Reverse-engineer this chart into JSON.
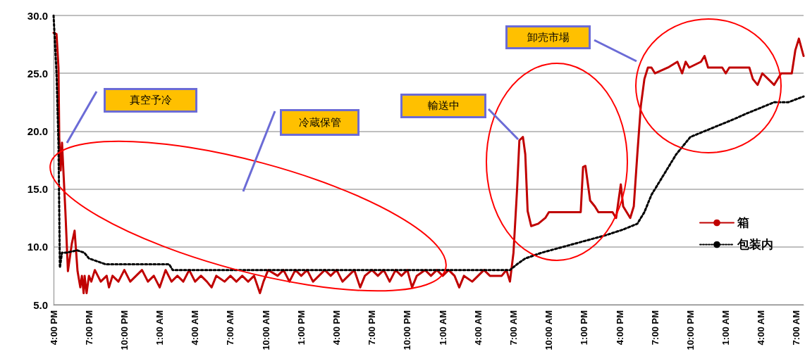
{
  "chart_data": {
    "type": "line",
    "xlim": [
      "--01-01T16:00",
      "--01-04T07:36"
    ],
    "ylim": [
      5,
      30
    ],
    "xticks": [
      {
        "value": "--01-01T16:00",
        "label": "4:00 PM"
      },
      {
        "value": "--01-01T19:00",
        "label": "7:00 PM"
      },
      {
        "value": "--01-01T22:00",
        "label": "10:00 PM"
      },
      {
        "value": "--01-02T01:00",
        "label": "1:00 AM"
      },
      {
        "value": "--01-02T04:00",
        "label": "4:00 AM"
      },
      {
        "value": "--01-02T07:00",
        "label": "7:00 AM"
      },
      {
        "value": "--01-02T10:00",
        "label": "10:00 AM"
      },
      {
        "value": "--01-02T13:00",
        "label": "1:00 PM"
      },
      {
        "value": "--01-02T16:00",
        "label": "4:00 PM"
      },
      {
        "value": "--01-02T19:00",
        "label": "7:00 PM"
      },
      {
        "value": "--01-02T22:00",
        "label": "10:00 PM"
      },
      {
        "value": "--01-03T01:00",
        "label": "1:00 AM"
      },
      {
        "value": "--01-03T04:00",
        "label": "4:00 AM"
      },
      {
        "value": "--01-03T07:00",
        "label": "7:00 AM"
      },
      {
        "value": "--01-03T10:00",
        "label": "10:00 AM"
      },
      {
        "value": "--01-03T13:00",
        "label": "1:00 PM"
      },
      {
        "value": "--01-03T16:00",
        "label": "4:00 PM"
      },
      {
        "value": "--01-03T19:00",
        "label": "7:00 PM"
      },
      {
        "value": "--01-03T22:00",
        "label": "10:00 PM"
      },
      {
        "value": "--01-04T01:00",
        "label": "1:00 AM"
      },
      {
        "value": "--01-04T04:00",
        "label": "4:00 AM"
      },
      {
        "value": "--01-04T07:00",
        "label": "7:00 AM"
      }
    ],
    "yticks": [
      {
        "value": 5,
        "label": "5.0"
      },
      {
        "value": 10,
        "label": "10.0"
      },
      {
        "value": 15,
        "label": "15.0"
      },
      {
        "value": 20,
        "label": "20.0"
      },
      {
        "value": 25,
        "label": "25.0"
      },
      {
        "value": 30,
        "label": "30.0"
      }
    ],
    "grid": "y",
    "legend": "right",
    "marker": "none",
    "annotations": [
      "真空予冷",
      "冷蔵保管",
      "輸送中",
      "卸売市場"
    ],
    "series": [
      {
        "name": "箱",
        "color": "#c00000",
        "line_style": "solid",
        "x": [
          "--01-01T16:00",
          "--01-01T16:15",
          "--01-01T16:25",
          "--01-01T16:29",
          "--01-01T16:36",
          "--01-01T16:43",
          "--01-01T17:00",
          "--01-01T17:13",
          "--01-01T17:33",
          "--01-01T17:47",
          "--01-01T18:02",
          "--01-01T18:16",
          "--01-01T18:24",
          "--01-01T18:33",
          "--01-01T18:38",
          "--01-01T18:48",
          "--01-01T19:00",
          "--01-01T19:12",
          "--01-01T19:30",
          "--01-01T20:00",
          "--01-01T20:30",
          "--01-01T20:42",
          "--01-01T21:00",
          "--01-01T21:30",
          "--01-01T22:00",
          "--01-01T22:30",
          "--01-01T23:00",
          "--01-01T23:30",
          "--01-02T00:00",
          "--01-02T00:30",
          "--01-02T01:00",
          "--01-02T01:30",
          "--01-02T02:00",
          "--01-02T02:30",
          "--01-02T03:00",
          "--01-02T03:30",
          "--01-02T04:00",
          "--01-02T04:30",
          "--01-02T05:00",
          "--01-02T05:24",
          "--01-02T05:48",
          "--01-02T06:30",
          "--01-02T07:00",
          "--01-02T07:30",
          "--01-02T08:00",
          "--01-02T08:30",
          "--01-02T09:00",
          "--01-02T09:30",
          "--01-02T09:48",
          "--01-02T10:12",
          "--01-02T11:00",
          "--01-02T11:30",
          "--01-02T12:00",
          "--01-02T12:30",
          "--01-02T13:00",
          "--01-02T13:30",
          "--01-02T14:00",
          "--01-02T14:30",
          "--01-02T15:00",
          "--01-02T15:30",
          "--01-02T16:00",
          "--01-02T16:30",
          "--01-02T17:00",
          "--01-02T17:30",
          "--01-02T18:00",
          "--01-02T18:24",
          "--01-02T19:00",
          "--01-02T19:30",
          "--01-02T20:00",
          "--01-02T20:30",
          "--01-02T21:00",
          "--01-02T21:30",
          "--01-02T22:00",
          "--01-02T22:24",
          "--01-02T22:48",
          "--01-02T23:30",
          "--01-03T00:00",
          "--01-03T00:30",
          "--01-03T01:00",
          "--01-03T01:30",
          "--01-03T02:00",
          "--01-03T02:24",
          "--01-03T02:48",
          "--01-03T03:30",
          "--01-03T04:00",
          "--01-03T04:30",
          "--01-03T05:00",
          "--01-03T05:30",
          "--01-03T06:00",
          "--01-03T06:24",
          "--01-03T06:42",
          "--01-03T07:00",
          "--01-03T07:18",
          "--01-03T07:30",
          "--01-03T07:48",
          "--01-03T08:00",
          "--01-03T08:12",
          "--01-03T08:30",
          "--01-03T09:06",
          "--01-03T09:42",
          "--01-03T10:00",
          "--01-03T12:42",
          "--01-03T12:54",
          "--01-03T13:06",
          "--01-03T13:30",
          "--01-03T13:54",
          "--01-03T14:12",
          "--01-03T15:24",
          "--01-03T15:42",
          "--01-03T16:06",
          "--01-03T16:18",
          "--01-03T16:54",
          "--01-03T17:12",
          "--01-03T17:30",
          "--01-03T17:48",
          "--01-03T18:06",
          "--01-03T18:24",
          "--01-03T18:42",
          "--01-03T19:00",
          "--01-03T20:06",
          "--01-03T20:54",
          "--01-03T21:18",
          "--01-03T21:36",
          "--01-03T21:54",
          "--01-03T22:54",
          "--01-03T23:12",
          "--01-03T23:30",
          "--01-04T00:42",
          "--01-04T01:00",
          "--01-04T01:18",
          "--01-04T03:00",
          "--01-04T03:18",
          "--01-04T03:42",
          "--01-04T04:06",
          "--01-04T04:36",
          "--01-04T05:06",
          "--01-04T05:24",
          "--01-04T05:42",
          "--01-04T06:36",
          "--01-04T06:54",
          "--01-04T07:12",
          "--01-04T07:36"
        ],
        "values": [
          28.5,
          28.4,
          25.5,
          19.4,
          16.6,
          19.0,
          13.1,
          7.9,
          10.3,
          11.4,
          7.9,
          6.5,
          7.5,
          6.0,
          7.5,
          6.0,
          7.5,
          7.0,
          8.0,
          7.0,
          7.5,
          6.5,
          7.5,
          7.0,
          8.0,
          7.0,
          7.5,
          8.0,
          7.0,
          7.5,
          6.5,
          8.0,
          7.0,
          7.5,
          7.0,
          8.0,
          7.0,
          7.5,
          7.0,
          6.5,
          7.5,
          7.0,
          7.5,
          7.0,
          7.5,
          7.0,
          7.5,
          6.0,
          7.0,
          8.0,
          7.5,
          8.0,
          7.0,
          8.0,
          7.5,
          8.0,
          7.0,
          7.5,
          8.0,
          7.5,
          8.0,
          7.0,
          7.5,
          8.0,
          6.5,
          7.5,
          8.0,
          7.5,
          8.0,
          7.0,
          8.0,
          7.5,
          8.0,
          6.5,
          7.5,
          8.0,
          7.5,
          8.0,
          7.5,
          8.0,
          7.5,
          6.5,
          7.5,
          7.0,
          7.5,
          8.0,
          7.5,
          7.5,
          7.5,
          8.0,
          7.0,
          9.5,
          14.9,
          19.2,
          19.5,
          18.0,
          13.1,
          11.8,
          12.0,
          12.5,
          13.0,
          13.0,
          16.9,
          17.0,
          14.0,
          13.5,
          13.0,
          13.0,
          12.5,
          15.4,
          13.5,
          12.5,
          13.5,
          18.0,
          22.2,
          24.5,
          25.5,
          25.5,
          25.0,
          25.5,
          26.0,
          25.0,
          26.0,
          25.5,
          26.0,
          26.5,
          25.5,
          25.5,
          25.0,
          25.5,
          25.5,
          24.5,
          24.0,
          25.0,
          24.5,
          24.0,
          24.5,
          25.0,
          25.0,
          27.0,
          28.0,
          26.5
        ]
      },
      {
        "name": "包装内",
        "color": "#000000",
        "line_style": "dotted",
        "x": [
          "--01-01T16:00",
          "--01-01T16:15",
          "--01-01T16:25",
          "--01-01T16:32",
          "--01-01T16:43",
          "--01-01T17:06",
          "--01-01T18:00",
          "--01-01T18:36",
          "--01-01T19:00",
          "--01-01T20:24",
          "--01-02T01:48",
          "--01-02T02:06",
          "--01-03T06:42",
          "--01-03T07:18",
          "--01-03T08:00",
          "--01-03T09:24",
          "--01-03T11:12",
          "--01-03T13:00",
          "--01-03T14:48",
          "--01-03T16:18",
          "--01-03T17:30",
          "--01-03T18:06",
          "--01-03T18:42",
          "--01-03T19:36",
          "--01-03T20:48",
          "--01-03T22:00",
          "--01-03T23:12",
          "--01-04T00:24",
          "--01-04T01:36",
          "--01-04T02:42",
          "--01-04T03:54",
          "--01-04T05:06",
          "--01-04T06:18",
          "--01-04T07:36"
        ],
        "values": [
          30.0,
          25.0,
          19.0,
          8.2,
          9.5,
          9.5,
          9.7,
          9.5,
          9.0,
          8.5,
          8.5,
          8.0,
          8.0,
          8.5,
          9.0,
          9.5,
          10.0,
          10.5,
          11.0,
          11.5,
          12.0,
          13.0,
          14.5,
          16.0,
          18.0,
          19.5,
          20.0,
          20.5,
          21.0,
          21.5,
          22.0,
          22.5,
          22.5,
          23.0
        ]
      }
    ]
  }
}
